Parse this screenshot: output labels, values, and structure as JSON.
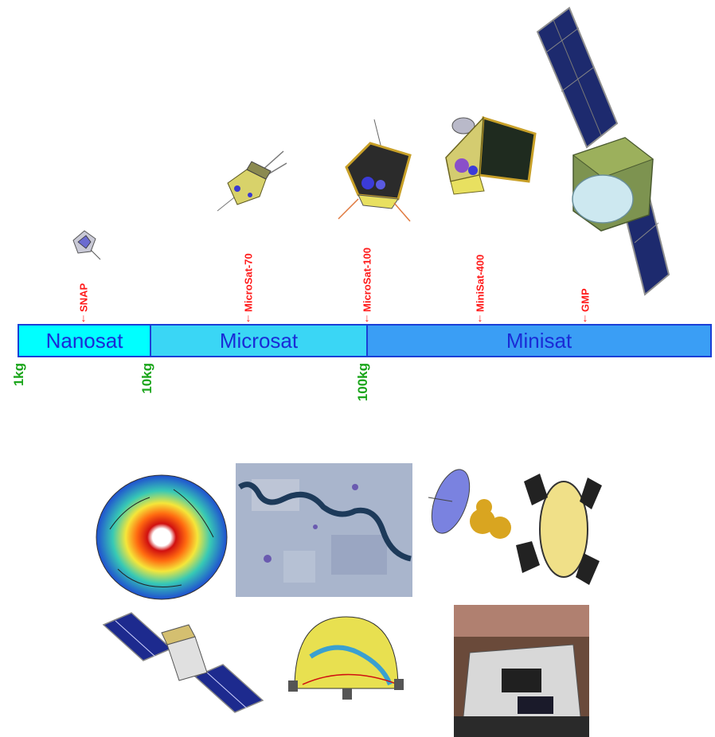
{
  "satellites": [
    {
      "label": "SNAP"
    },
    {
      "label": "MicroSat-70"
    },
    {
      "label": "MicroSat-100"
    },
    {
      "label": "MiniSat-400"
    },
    {
      "label": "GMP"
    }
  ],
  "classes": [
    {
      "label": "Nanosat"
    },
    {
      "label": "Microsat"
    },
    {
      "label": "Minisat"
    }
  ],
  "masses": [
    {
      "label": "1kg"
    },
    {
      "label": "10kg"
    },
    {
      "label": "100kg"
    }
  ],
  "colors": {
    "nanosat": "#00ffff",
    "microsat": "#3ad6f5",
    "minisat": "#3a9ef5",
    "border": "#1a3fd6",
    "satellite_label": "#ff1a1a",
    "mass_label": "#1aa51a"
  }
}
